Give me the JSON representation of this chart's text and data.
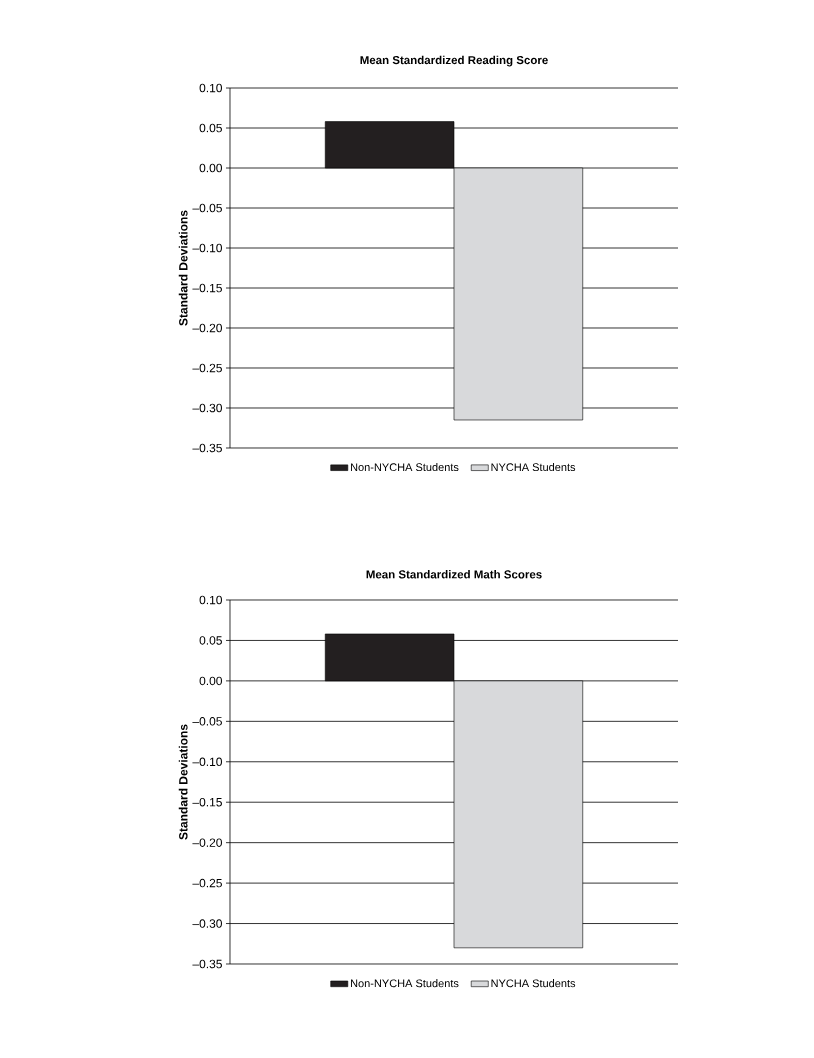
{
  "chart_data": [
    {
      "type": "bar",
      "title": "Mean Standardized Reading Score",
      "ylabel": "Standard Deviations",
      "categories": [
        null
      ],
      "series": [
        {
          "name": "Non-NYCHA Students",
          "color": "#231f20",
          "values": [
            0.058
          ]
        },
        {
          "name": "NYCHA Students",
          "color": "#d8d9db",
          "values": [
            -0.315
          ]
        }
      ],
      "ylim": [
        -0.35,
        0.1
      ],
      "yticks": [
        {
          "value": -0.35,
          "label": "–0.35"
        },
        {
          "value": -0.3,
          "label": "–0.30"
        },
        {
          "value": -0.25,
          "label": "–0.25"
        },
        {
          "value": -0.2,
          "label": "–0.20"
        },
        {
          "value": -0.15,
          "label": "–0.15"
        },
        {
          "value": -0.1,
          "label": "–0.10"
        },
        {
          "value": -0.05,
          "label": "–0.05"
        },
        {
          "value": 0,
          "label": "0.00"
        },
        {
          "value": 0.05,
          "label": "0.05"
        },
        {
          "value": 0.1,
          "label": "0.10"
        }
      ],
      "grid": "y",
      "legend": "bottom"
    },
    {
      "type": "bar",
      "title": "Mean Standardized Math Scores",
      "ylabel": "Standard Deviations",
      "categories": [
        null
      ],
      "series": [
        {
          "name": "Non-NYCHA Students",
          "color": "#231f20",
          "values": [
            0.058
          ]
        },
        {
          "name": "NYCHA Students",
          "color": "#d8d9db",
          "values": [
            -0.33
          ]
        }
      ],
      "ylim": [
        -0.35,
        0.1
      ],
      "yticks": [
        {
          "value": -0.35,
          "label": "–0.35"
        },
        {
          "value": -0.3,
          "label": "–0.30"
        },
        {
          "value": -0.25,
          "label": "–0.25"
        },
        {
          "value": -0.2,
          "label": "–0.20"
        },
        {
          "value": -0.15,
          "label": "–0.15"
        },
        {
          "value": -0.1,
          "label": "–0.10"
        },
        {
          "value": -0.05,
          "label": "–0.05"
        },
        {
          "value": 0,
          "label": "0.00"
        },
        {
          "value": 0.05,
          "label": "0.05"
        },
        {
          "value": 0.1,
          "label": "0.10"
        }
      ],
      "grid": "y",
      "legend": "bottom"
    }
  ]
}
